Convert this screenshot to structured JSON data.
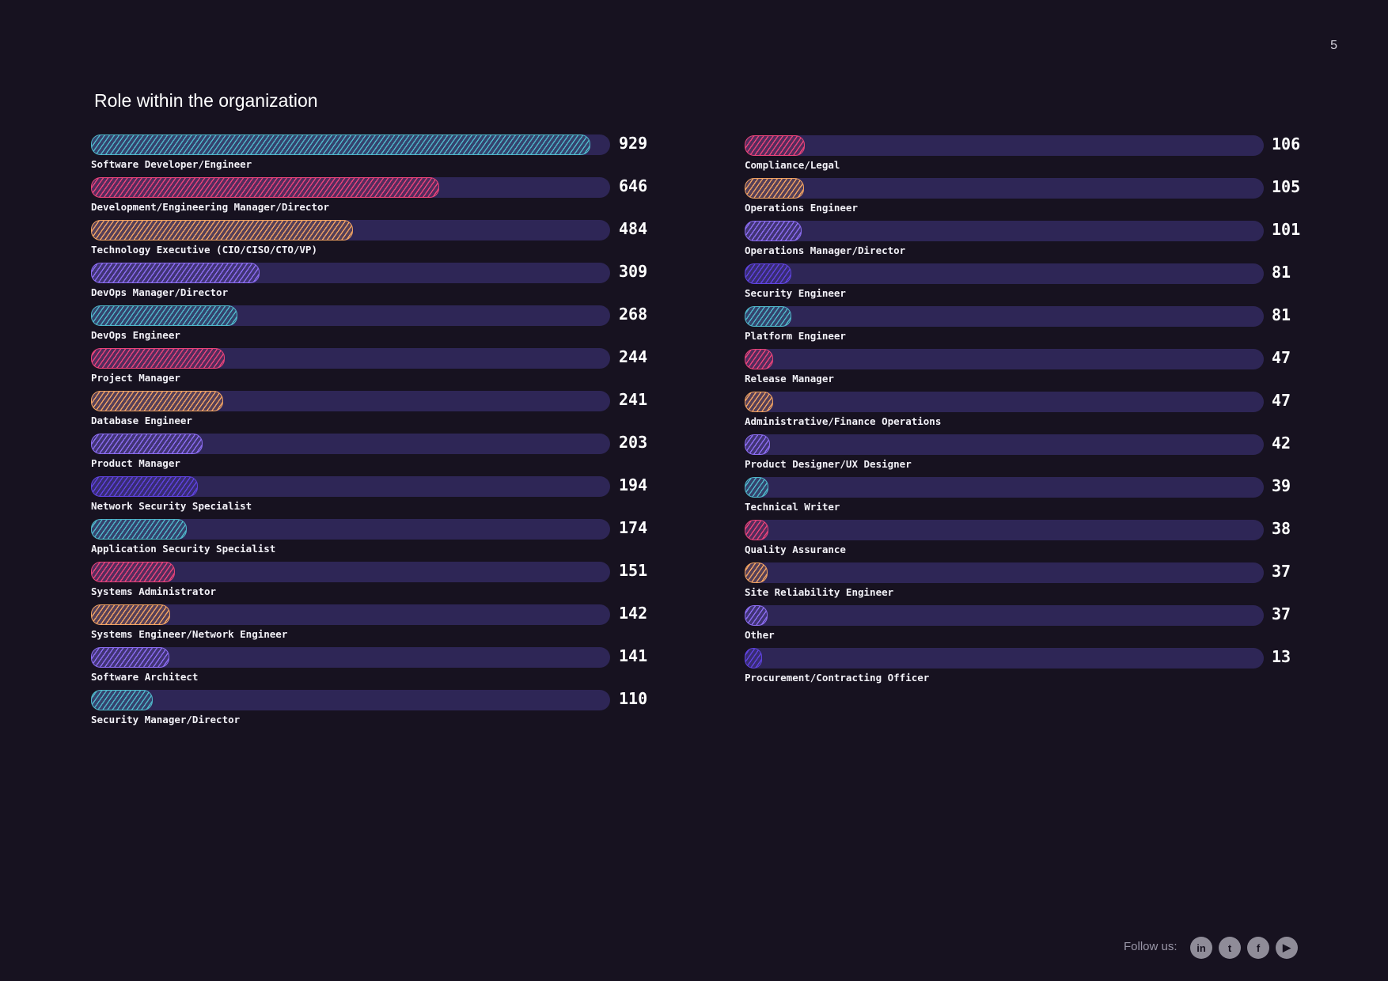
{
  "page": {
    "number": "5"
  },
  "chart_data": {
    "type": "bar",
    "orientation": "horizontal",
    "title": "Role within the organization",
    "xlim": [
      0,
      960
    ],
    "colors": [
      "#4fb6c9",
      "#e9437a",
      "#f0a262",
      "#8b6cf0",
      "#5f43e0"
    ],
    "columns": [
      {
        "categories": [
          "Software Developer/Engineer",
          "Development/Engineering Manager/Director",
          "Technology Executive (CIO/CISO/CTO/VP)",
          "DevOps Manager/Director",
          "DevOps Engineer",
          "Project Manager",
          "Database Engineer",
          "Product Manager",
          "Network Security Specialist",
          "Application Security Specialist",
          "Systems Administrator",
          "Systems Engineer/Network Engineer",
          "Software Architect",
          "Security Manager/Director"
        ],
        "values": [
          929,
          646,
          484,
          309,
          268,
          244,
          241,
          203,
          194,
          174,
          151,
          142,
          141,
          110
        ],
        "color_index": [
          0,
          1,
          2,
          3,
          0,
          1,
          2,
          3,
          4,
          0,
          1,
          2,
          3,
          0
        ]
      },
      {
        "categories": [
          "Compliance/Legal",
          "Operations Engineer",
          "Operations Manager/Director",
          "Security Engineer",
          "Platform Engineer",
          "Release Manager",
          "Administrative/Finance Operations",
          "Product Designer/UX Designer",
          "Technical Writer",
          "Quality Assurance",
          "Site Reliability Engineer",
          "Other",
          "Procurement/Contracting Officer"
        ],
        "values": [
          106,
          105,
          101,
          81,
          81,
          47,
          47,
          42,
          39,
          38,
          37,
          37,
          13
        ],
        "color_index": [
          1,
          2,
          3,
          4,
          0,
          1,
          2,
          3,
          0,
          1,
          2,
          3,
          4
        ]
      }
    ]
  },
  "footer": {
    "follow_label": "Follow us:",
    "social": [
      {
        "icon": "linkedin-icon",
        "glyph": "in"
      },
      {
        "icon": "twitter-icon",
        "glyph": "t"
      },
      {
        "icon": "facebook-icon",
        "glyph": "f"
      },
      {
        "icon": "youtube-icon",
        "glyph": "▶"
      }
    ]
  }
}
